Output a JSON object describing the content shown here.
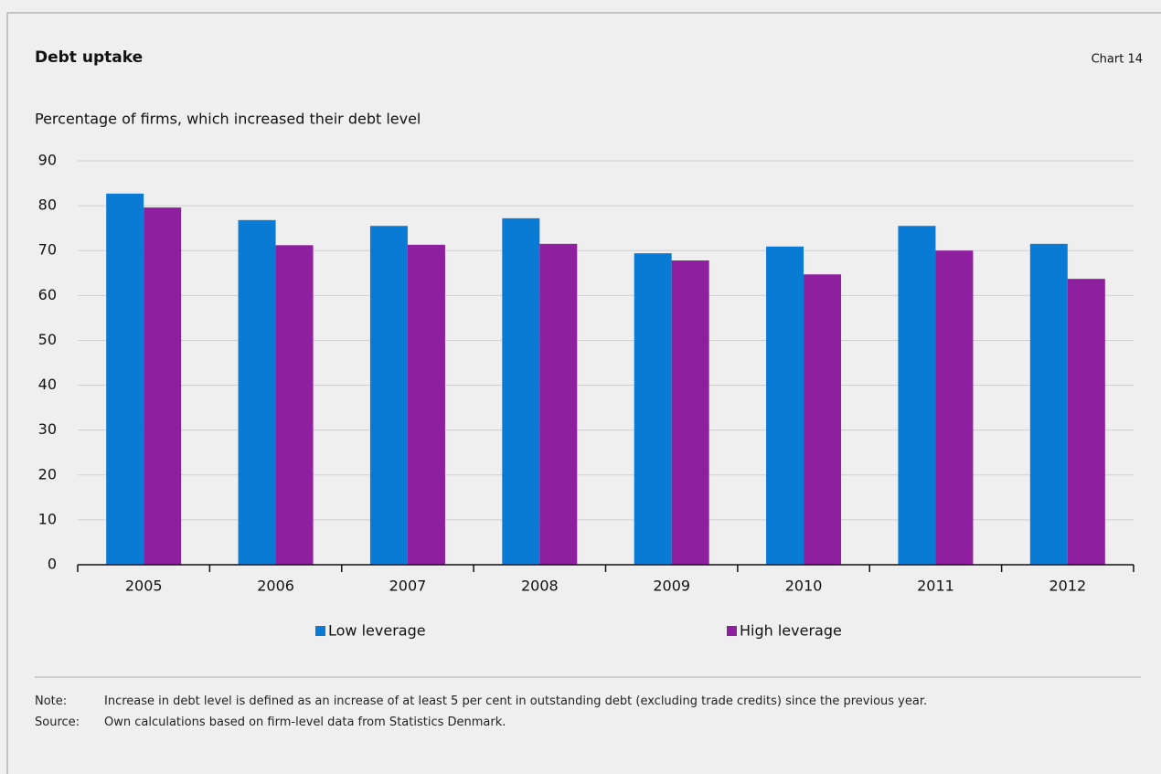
{
  "chart_data": {
    "type": "bar",
    "title": "Debt uptake",
    "chart_label": "Chart 14",
    "subtitle": "Percentage of firms, which increased their debt level",
    "categories": [
      "2005",
      "2006",
      "2007",
      "2008",
      "2009",
      "2010",
      "2011",
      "2012"
    ],
    "series": [
      {
        "name": "Low leverage",
        "color": "#0a7bd4",
        "values": [
          82.7,
          76.8,
          75.5,
          77.2,
          69.4,
          70.9,
          75.5,
          71.5
        ]
      },
      {
        "name": "High leverage",
        "color": "#8e1f9e",
        "values": [
          79.6,
          71.2,
          71.3,
          71.5,
          67.8,
          64.7,
          70.0,
          63.7
        ]
      }
    ],
    "ylim": [
      0,
      90
    ],
    "yticks": [
      0,
      10,
      20,
      30,
      40,
      50,
      60,
      70,
      80,
      90
    ],
    "grid": true,
    "notes": [
      {
        "label": "Note:",
        "text": "Increase in debt level is defined as an increase of at least 5 per cent in outstanding debt (excluding trade credits) since the previous year."
      },
      {
        "label": "Source:",
        "text": "Own calculations based on firm-level data from Statistics Denmark."
      }
    ]
  }
}
